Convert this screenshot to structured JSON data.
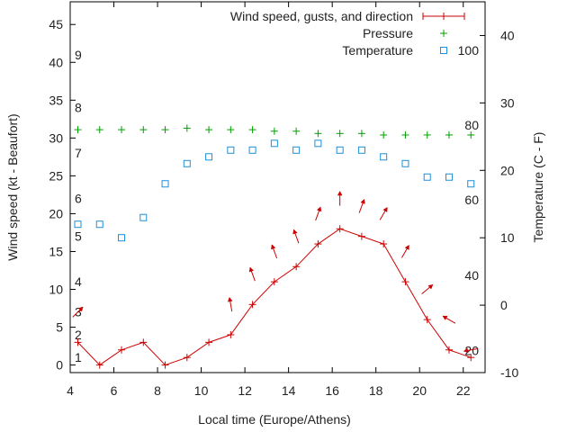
{
  "chart_data": {
    "type": "line",
    "xlabel": "Local time (Europe/Athens)",
    "ylabel": "Wind speed (kt - Beaufort)",
    "y2label": "Temperature (C - F)",
    "xlim": [
      4,
      23
    ],
    "ylim": [
      -1,
      48
    ],
    "y2lim": [
      -10,
      45
    ],
    "x_ticks": [
      4,
      6,
      8,
      10,
      12,
      14,
      16,
      18,
      20,
      22
    ],
    "y_ticks": [
      0,
      5,
      10,
      15,
      20,
      25,
      30,
      35,
      40,
      45
    ],
    "y2_ticks": [
      -10,
      0,
      10,
      20,
      30,
      40
    ],
    "beaufort_labels": [
      {
        "text": "1",
        "y": 1
      },
      {
        "text": "2",
        "y": 4
      },
      {
        "text": "3",
        "y": 7
      },
      {
        "text": "4",
        "y": 11
      },
      {
        "text": "5",
        "y": 17
      },
      {
        "text": "6",
        "y": 22
      },
      {
        "text": "7",
        "y": 28
      },
      {
        "text": "8",
        "y": 34
      },
      {
        "text": "9",
        "y": 41
      }
    ],
    "fahrenheit_labels": [
      {
        "text": "20",
        "y2": -6.7
      },
      {
        "text": "40",
        "y2": 4.4
      },
      {
        "text": "60",
        "y2": 15.6
      },
      {
        "text": "80",
        "y2": 26.7
      },
      {
        "text": "100",
        "y2": 37.8
      }
    ],
    "legend": {
      "position": "top-right",
      "entries": [
        "Wind speed, gusts, and direction",
        "Pressure",
        "Temperature"
      ]
    },
    "series": [
      {
        "name": "Wind speed, gusts, and direction",
        "axis": "y",
        "color": "#cc0000",
        "style": "line+plus",
        "x": [
          4.35,
          5.35,
          6.35,
          7.35,
          8.35,
          9.35,
          10.35,
          11.35,
          12.35,
          13.35,
          14.35,
          15.35,
          16.35,
          17.35,
          18.35,
          19.35,
          20.35,
          21.35,
          22.35
        ],
        "values": [
          3,
          0,
          2,
          3,
          0,
          1,
          3,
          4,
          8,
          11,
          13,
          16,
          18,
          17,
          16,
          11,
          6,
          2,
          1
        ],
        "gusts": [
          7,
          null,
          null,
          null,
          null,
          null,
          null,
          8,
          12,
          15,
          17,
          20,
          22,
          21,
          20,
          15,
          10,
          6,
          2
        ],
        "direction_deg": [
          225,
          null,
          null,
          null,
          null,
          null,
          null,
          170,
          160,
          160,
          160,
          200,
          180,
          200,
          210,
          210,
          230,
          120,
          80
        ]
      },
      {
        "name": "Pressure",
        "axis": "y",
        "color": "#00a000",
        "style": "points-plus",
        "x": [
          4.35,
          5.35,
          6.35,
          7.35,
          8.35,
          9.35,
          10.35,
          11.35,
          12.35,
          13.35,
          14.35,
          15.35,
          16.35,
          17.35,
          18.35,
          19.35,
          20.35,
          21.35,
          22.35
        ],
        "values": [
          31.1,
          31.1,
          31.1,
          31.1,
          31.1,
          31.3,
          31.1,
          31.1,
          31.1,
          30.9,
          30.9,
          30.6,
          30.6,
          30.6,
          30.4,
          30.4,
          30.4,
          30.4,
          30.4
        ]
      },
      {
        "name": "Temperature",
        "axis": "y2",
        "color": "#1f8fd6",
        "style": "points-square",
        "x": [
          4.35,
          5.35,
          6.35,
          7.35,
          8.35,
          9.35,
          10.35,
          11.35,
          12.35,
          13.35,
          14.35,
          15.35,
          16.35,
          17.35,
          18.35,
          19.35,
          20.35,
          21.35,
          22.35
        ],
        "values": [
          12,
          12,
          10,
          13,
          18,
          21,
          22,
          23,
          23,
          24,
          23,
          24,
          23,
          23,
          22,
          21,
          19,
          19,
          18
        ]
      }
    ]
  }
}
